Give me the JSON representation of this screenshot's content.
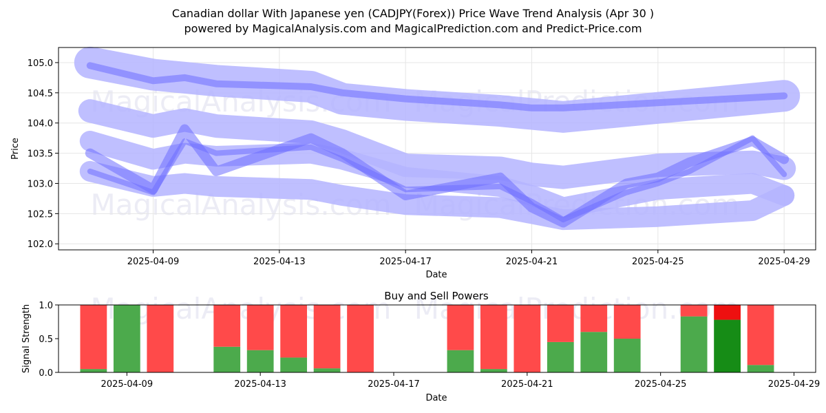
{
  "title_line1": "Canadian dollar With Japanese yen (CADJPY(Forex)) Price Wave Trend Analysis (Apr 30 )",
  "title_line2": "powered by MagicalAnalysis.com and MagicalPrediction.com and Predict-Price.com",
  "watermarks": [
    "MagicalAnalysis.com",
    "MagicalPrediction.com"
  ],
  "chart_data": [
    {
      "type": "line",
      "title": "",
      "xlabel": "Date",
      "ylabel": "Price",
      "grid": true,
      "xlim": [
        "2025-04-06",
        "2025-04-30"
      ],
      "ylim": [
        101.9,
        105.25
      ],
      "x_ticks": [
        "2025-04-09",
        "2025-04-13",
        "2025-04-17",
        "2025-04-21",
        "2025-04-25",
        "2025-04-29"
      ],
      "y_ticks": [
        "102.0",
        "102.5",
        "103.0",
        "103.5",
        "104.0",
        "104.5",
        "105.0"
      ],
      "colors": {
        "band": "#6e6eff",
        "band_light": "#b4b4ff"
      },
      "series": [
        {
          "x": [
            "2025-04-07",
            "2025-04-09",
            "2025-04-10",
            "2025-04-11",
            "2025-04-14",
            "2025-04-15",
            "2025-04-17",
            "2025-04-20",
            "2025-04-21",
            "2025-04-22",
            "2025-04-29"
          ],
          "y": [
            105.0,
            104.8,
            104.75,
            104.7,
            104.6,
            104.4,
            104.3,
            104.2,
            104.15,
            104.1,
            104.45
          ],
          "width": 46
        },
        {
          "x": [
            "2025-04-07",
            "2025-04-09",
            "2025-04-10",
            "2025-04-11",
            "2025-04-14",
            "2025-04-15",
            "2025-04-17",
            "2025-04-20",
            "2025-04-21",
            "2025-04-22",
            "2025-04-29"
          ],
          "y": [
            104.95,
            104.7,
            104.75,
            104.65,
            104.6,
            104.5,
            104.4,
            104.3,
            104.25,
            104.25,
            104.45
          ],
          "width": 10
        },
        {
          "x": [
            "2025-04-07",
            "2025-04-09",
            "2025-04-10",
            "2025-04-11",
            "2025-04-14",
            "2025-04-15",
            "2025-04-17",
            "2025-04-20",
            "2025-04-21",
            "2025-04-22",
            "2025-04-25",
            "2025-04-28",
            "2025-04-29"
          ],
          "y": [
            104.2,
            103.95,
            104.05,
            103.95,
            103.85,
            103.7,
            103.3,
            103.25,
            103.15,
            103.1,
            103.3,
            103.35,
            103.25
          ],
          "width": 34
        },
        {
          "x": [
            "2025-04-07",
            "2025-04-09",
            "2025-04-10",
            "2025-04-11",
            "2025-04-14",
            "2025-04-15",
            "2025-04-17",
            "2025-04-20",
            "2025-04-21",
            "2025-04-22",
            "2025-04-25",
            "2025-04-28",
            "2025-04-29"
          ],
          "y": [
            103.7,
            103.4,
            103.5,
            103.45,
            103.5,
            103.4,
            103.1,
            102.95,
            102.8,
            102.6,
            102.9,
            103.0,
            102.8
          ],
          "width": 30
        },
        {
          "x": [
            "2025-04-07",
            "2025-04-09",
            "2025-04-10",
            "2025-04-11",
            "2025-04-14",
            "2025-04-15",
            "2025-04-17",
            "2025-04-20",
            "2025-04-21",
            "2025-04-22",
            "2025-04-25",
            "2025-04-28",
            "2025-04-29"
          ],
          "y": [
            103.2,
            102.95,
            103.0,
            102.95,
            102.9,
            102.8,
            102.65,
            102.6,
            102.5,
            102.4,
            102.45,
            102.55,
            102.8
          ],
          "width": 30
        },
        {
          "x": [
            "2025-04-07",
            "2025-04-09",
            "2025-04-10",
            "2025-04-11",
            "2025-04-14",
            "2025-04-15",
            "2025-04-17",
            "2025-04-20",
            "2025-04-21",
            "2025-04-22",
            "2025-04-24",
            "2025-04-25",
            "2025-04-26",
            "2025-04-28",
            "2025-04-29"
          ],
          "y": [
            103.2,
            102.85,
            103.7,
            103.5,
            103.6,
            103.4,
            102.9,
            102.95,
            102.7,
            102.4,
            102.85,
            103.0,
            103.2,
            103.75,
            103.15
          ],
          "width": 8
        },
        {
          "x": [
            "2025-04-07",
            "2025-04-09",
            "2025-04-10",
            "2025-04-11",
            "2025-04-14",
            "2025-04-15",
            "2025-04-17",
            "2025-04-20",
            "2025-04-21",
            "2025-04-22",
            "2025-04-24",
            "2025-04-25",
            "2025-04-26",
            "2025-04-28",
            "2025-04-29"
          ],
          "y": [
            103.5,
            102.9,
            103.9,
            103.2,
            103.75,
            103.5,
            102.8,
            103.1,
            102.6,
            102.35,
            103.0,
            103.1,
            103.35,
            103.7,
            103.4
          ],
          "width": 14
        }
      ]
    },
    {
      "type": "bar",
      "title": "Buy and Sell Powers",
      "xlabel": "Date",
      "ylabel": "Signal Strength",
      "ylim": [
        0,
        1
      ],
      "y_ticks": [
        "0.0",
        "0.5",
        "1.0"
      ],
      "x_ticks": [
        "2025-04-09",
        "2025-04-13",
        "2025-04-17",
        "2025-04-21",
        "2025-04-25",
        "2025-04-29"
      ],
      "colors": {
        "buy": "#4caa4c",
        "sell": "#ff4a4a",
        "buy_strong": "#168c16",
        "sell_strong": "#ee1010"
      },
      "categories": [
        "2025-04-08",
        "2025-04-09",
        "2025-04-10",
        "2025-04-12",
        "2025-04-13",
        "2025-04-14",
        "2025-04-15",
        "2025-04-16",
        "2025-04-19",
        "2025-04-20",
        "2025-04-21",
        "2025-04-22",
        "2025-04-23",
        "2025-04-24",
        "2025-04-26",
        "2025-04-27",
        "2025-04-28"
      ],
      "series": [
        {
          "name": "Buy",
          "values": [
            0.05,
            1.0,
            0.0,
            0.38,
            0.33,
            0.22,
            0.06,
            0.0,
            0.33,
            0.05,
            0.0,
            0.45,
            0.6,
            0.5,
            0.83,
            0.78,
            0.11
          ]
        },
        {
          "name": "Sell",
          "values": [
            0.95,
            0.0,
            1.0,
            0.62,
            0.67,
            0.78,
            0.94,
            1.0,
            0.67,
            0.95,
            1.0,
            0.55,
            0.4,
            0.5,
            0.17,
            0.22,
            0.89
          ]
        }
      ],
      "strong": [
        false,
        false,
        false,
        false,
        false,
        false,
        false,
        false,
        false,
        false,
        false,
        false,
        false,
        false,
        false,
        true,
        false
      ]
    }
  ]
}
